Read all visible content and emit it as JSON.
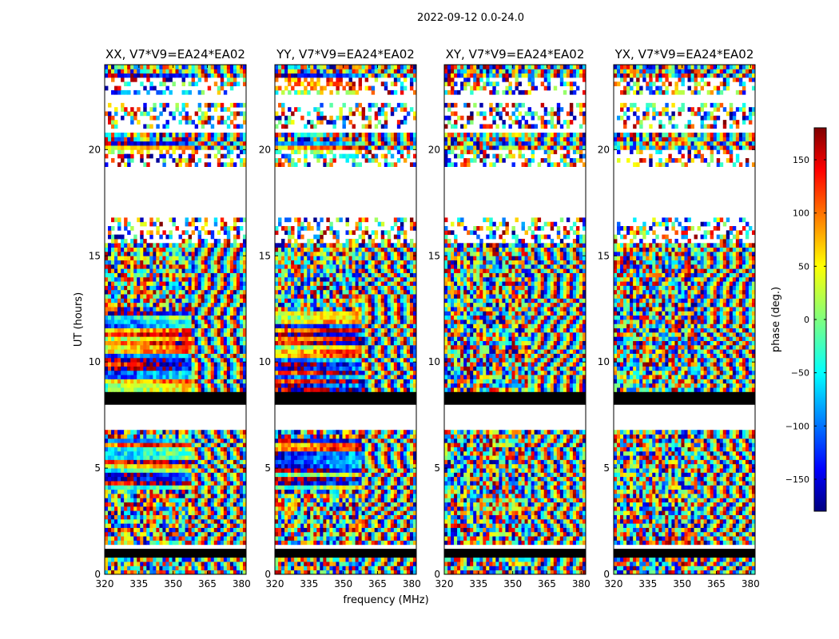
{
  "figure": {
    "suptitle": "2022-09-12 0.0-24.0",
    "xlabel": "frequency (MHz)",
    "ylabel": "UT (hours)"
  },
  "chart_data": [
    {
      "type": "heatmap",
      "title": "XX, V7*V9=EA24*EA02",
      "xlim": [
        320,
        382
      ],
      "ylim": [
        0,
        24
      ],
      "xticks": [
        320,
        335,
        350,
        365,
        380
      ],
      "yticks": [
        0,
        5,
        10,
        15,
        20
      ],
      "xlabel": "",
      "ylabel": "UT (hours)",
      "value": "phase (deg.)"
    },
    {
      "type": "heatmap",
      "title": "YY, V7*V9=EA24*EA02",
      "xlim": [
        320,
        382
      ],
      "ylim": [
        0,
        24
      ],
      "xticks": [
        320,
        335,
        350,
        365,
        380
      ],
      "yticks": [
        0,
        5,
        10,
        15,
        20
      ],
      "xlabel": "frequency (MHz)",
      "ylabel": "",
      "value": "phase (deg.)"
    },
    {
      "type": "heatmap",
      "title": "XY, V7*V9=EA24*EA02",
      "xlim": [
        320,
        382
      ],
      "ylim": [
        0,
        24
      ],
      "xticks": [
        320,
        335,
        350,
        365,
        380
      ],
      "yticks": [
        0,
        5,
        10,
        15,
        20
      ],
      "xlabel": "",
      "ylabel": "",
      "value": "phase (deg.)"
    },
    {
      "type": "heatmap",
      "title": "YX, V7*V9=EA24*EA02",
      "xlim": [
        320,
        382
      ],
      "ylim": [
        0,
        24
      ],
      "xticks": [
        320,
        335,
        350,
        365,
        380
      ],
      "yticks": [
        0,
        5,
        10,
        15,
        20
      ],
      "xlabel": "",
      "ylabel": "",
      "value": "phase (deg.)"
    }
  ],
  "colorbar": {
    "label": "phase (deg.)",
    "min": -180,
    "max": 180,
    "ticks": [
      150,
      100,
      50,
      0,
      -50,
      -100,
      -150
    ],
    "tick_labels": [
      "150",
      "100",
      "50",
      "0",
      "−50",
      "−100",
      "−150"
    ],
    "colormap": "jet",
    "stops": [
      "#00007f",
      "#0000ff",
      "#00ffff",
      "#7fff7f",
      "#ffff00",
      "#ff0000",
      "#7f0000"
    ]
  }
}
